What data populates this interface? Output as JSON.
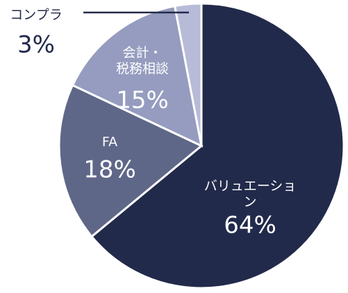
{
  "chart_data": {
    "type": "pie",
    "categories": [
      "バリュエーション",
      "FA",
      "会計・\n税務相談",
      "コンプラ"
    ],
    "values": [
      64,
      18,
      15,
      3
    ],
    "value_labels": [
      "64%",
      "18%",
      "15%",
      "3%"
    ],
    "colors": [
      "#222a4b",
      "#5f6788",
      "#959cbf",
      "#b8bbd7"
    ]
  }
}
